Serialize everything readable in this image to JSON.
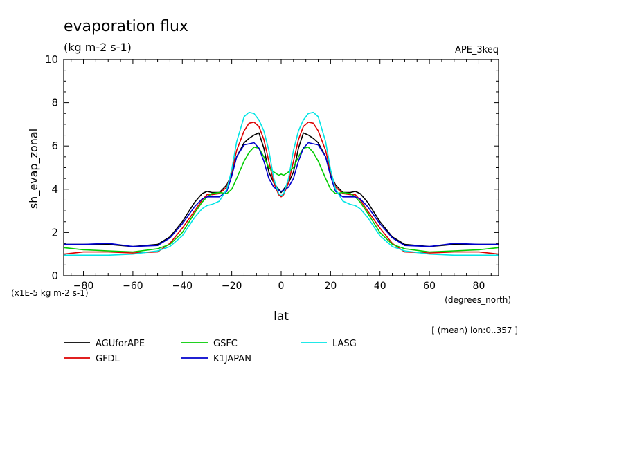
{
  "figure": {
    "title": "evaporation flux",
    "units": "(kg m-2 s-1)",
    "experiment": "APE_3keq",
    "ylabel": "sh_evap_zonal",
    "yscale_note": "(x1E-5 kg m-2 s-1)",
    "xlabel": "lat",
    "xunits": "(degrees_north)",
    "footnote": "[ (mean) lon:0..357 ]"
  },
  "chart_data": {
    "type": "line",
    "title": "evaporation flux",
    "xlabel": "lat",
    "ylabel": "sh_evap_zonal",
    "xlim": [
      -88,
      88
    ],
    "ylim": [
      0,
      10
    ],
    "xticks": [
      -80,
      -60,
      -40,
      -20,
      0,
      20,
      40,
      60,
      80
    ],
    "yticks": [
      0,
      2,
      4,
      6,
      8,
      10
    ],
    "grid": false,
    "legend_position": "bottom",
    "x": [
      -88,
      -80,
      -70,
      -60,
      -50,
      -45,
      -40,
      -35,
      -32,
      -30,
      -28,
      -25,
      -22,
      -20,
      -18,
      -15,
      -13,
      -11,
      -9,
      -7,
      -5,
      -3,
      -1,
      0,
      1,
      3,
      5,
      7,
      9,
      11,
      13,
      15,
      18,
      20,
      22,
      25,
      28,
      30,
      32,
      35,
      40,
      45,
      50,
      60,
      70,
      80,
      88
    ],
    "series": [
      {
        "name": "AGUforAPE",
        "color": "#000000",
        "values": [
          1.45,
          1.45,
          1.45,
          1.35,
          1.45,
          1.8,
          2.5,
          3.4,
          3.8,
          3.9,
          3.85,
          3.85,
          4.2,
          4.7,
          5.5,
          6.15,
          6.35,
          6.5,
          6.6,
          5.9,
          4.8,
          4.3,
          4.0,
          3.85,
          4.0,
          4.3,
          4.8,
          5.9,
          6.6,
          6.5,
          6.35,
          6.15,
          5.5,
          4.7,
          4.2,
          3.85,
          3.85,
          3.9,
          3.8,
          3.4,
          2.5,
          1.8,
          1.45,
          1.35,
          1.45,
          1.45,
          1.45
        ]
      },
      {
        "name": "GFDL",
        "color": "#dd0000",
        "values": [
          1.0,
          1.1,
          1.1,
          1.05,
          1.1,
          1.5,
          2.2,
          3.0,
          3.5,
          3.75,
          3.75,
          3.8,
          4.1,
          4.8,
          5.8,
          6.7,
          7.05,
          7.1,
          6.9,
          6.3,
          5.3,
          4.3,
          3.75,
          3.65,
          3.75,
          4.3,
          5.3,
          6.3,
          6.9,
          7.1,
          7.05,
          6.7,
          5.8,
          4.8,
          4.1,
          3.8,
          3.75,
          3.75,
          3.5,
          3.0,
          2.2,
          1.5,
          1.1,
          1.05,
          1.1,
          1.1,
          1.0
        ]
      },
      {
        "name": "GSFC",
        "color": "#00cc00",
        "values": [
          1.3,
          1.2,
          1.15,
          1.1,
          1.25,
          1.45,
          2.0,
          2.9,
          3.4,
          3.65,
          3.8,
          3.85,
          3.8,
          4.0,
          4.5,
          5.3,
          5.7,
          5.95,
          5.9,
          5.5,
          5.0,
          4.8,
          4.65,
          4.7,
          4.65,
          4.8,
          5.0,
          5.5,
          5.9,
          5.95,
          5.7,
          5.3,
          4.5,
          4.0,
          3.8,
          3.85,
          3.8,
          3.65,
          3.4,
          2.9,
          2.0,
          1.45,
          1.25,
          1.1,
          1.15,
          1.2,
          1.3
        ]
      },
      {
        "name": "K1JAPAN",
        "color": "#0000cc",
        "values": [
          1.45,
          1.45,
          1.5,
          1.35,
          1.4,
          1.75,
          2.4,
          3.2,
          3.55,
          3.65,
          3.65,
          3.65,
          3.9,
          4.6,
          5.5,
          6.05,
          6.1,
          6.15,
          5.9,
          5.3,
          4.5,
          4.1,
          3.95,
          3.9,
          3.95,
          4.1,
          4.5,
          5.3,
          5.9,
          6.15,
          6.1,
          6.05,
          5.5,
          4.6,
          3.9,
          3.65,
          3.65,
          3.65,
          3.55,
          3.2,
          2.4,
          1.75,
          1.4,
          1.35,
          1.5,
          1.45,
          1.45
        ]
      },
      {
        "name": "LASG",
        "color": "#00e5e5",
        "values": [
          0.95,
          0.95,
          0.95,
          1.0,
          1.15,
          1.35,
          1.85,
          2.7,
          3.1,
          3.25,
          3.3,
          3.45,
          4.0,
          4.9,
          6.2,
          7.35,
          7.55,
          7.5,
          7.2,
          6.7,
          5.8,
          4.5,
          3.8,
          3.7,
          3.8,
          4.5,
          5.8,
          6.7,
          7.2,
          7.5,
          7.55,
          7.35,
          6.2,
          4.9,
          4.0,
          3.45,
          3.3,
          3.25,
          3.1,
          2.7,
          1.85,
          1.35,
          1.15,
          1.0,
          0.95,
          0.95,
          0.95
        ]
      }
    ]
  }
}
